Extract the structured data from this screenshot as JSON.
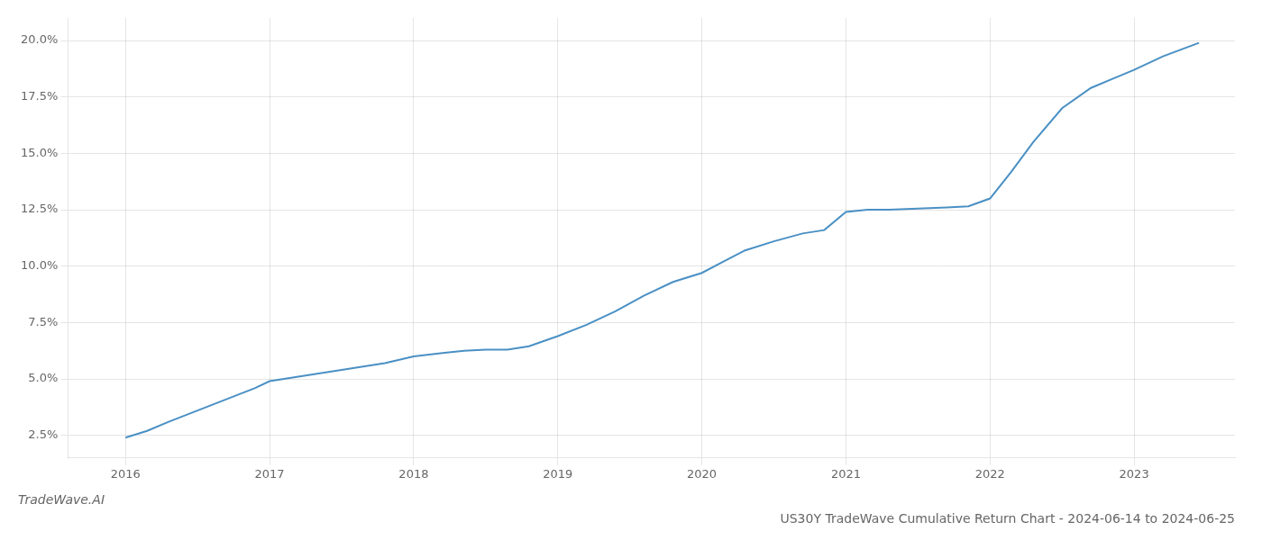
{
  "chart_data": {
    "type": "line",
    "title": "US30Y TradeWave Cumulative Return Chart - 2024-06-14 to 2024-06-25",
    "annotations": [
      "TradeWave.AI"
    ],
    "color": "#4a90c4",
    "grid": true,
    "x": [
      2016.0,
      2016.15,
      2016.3,
      2016.5,
      2016.7,
      2016.9,
      2017.0,
      2017.2,
      2017.4,
      2017.6,
      2017.8,
      2018.0,
      2018.2,
      2018.35,
      2018.5,
      2018.65,
      2018.8,
      2019.0,
      2019.2,
      2019.4,
      2019.6,
      2019.8,
      2020.0,
      2020.15,
      2020.3,
      2020.5,
      2020.7,
      2020.85,
      2021.0,
      2021.15,
      2021.3,
      2021.5,
      2021.7,
      2021.85,
      2022.0,
      2022.15,
      2022.3,
      2022.5,
      2022.7,
      2022.85,
      2023.0,
      2023.2,
      2023.45
    ],
    "values": [
      2.4,
      2.7,
      3.1,
      3.6,
      4.1,
      4.6,
      4.9,
      5.1,
      5.3,
      5.5,
      5.7,
      6.0,
      6.15,
      6.25,
      6.3,
      6.3,
      6.45,
      6.9,
      7.4,
      8.0,
      8.7,
      9.3,
      9.7,
      10.2,
      10.7,
      11.1,
      11.45,
      11.6,
      12.4,
      12.5,
      12.5,
      12.55,
      12.6,
      12.65,
      13.0,
      14.2,
      15.5,
      17.0,
      17.9,
      18.3,
      18.7,
      19.3,
      19.9
    ],
    "xlim": [
      2015.6,
      2023.7
    ],
    "xticks": [
      2016,
      2017,
      2018,
      2019,
      2020,
      2021,
      2022,
      2023
    ],
    "ylim": [
      1.5,
      21.0
    ],
    "yticks": [
      {
        "value": 2.5,
        "label": "2.5%"
      },
      {
        "value": 5.0,
        "label": "5.0%"
      },
      {
        "value": 7.5,
        "label": "7.5%"
      },
      {
        "value": 10.0,
        "label": "10.0%"
      },
      {
        "value": 12.5,
        "label": "12.5%"
      },
      {
        "value": 15.0,
        "label": "15.0%"
      },
      {
        "value": 17.5,
        "label": "17.5%"
      },
      {
        "value": 20.0,
        "label": "20.0%"
      }
    ]
  }
}
